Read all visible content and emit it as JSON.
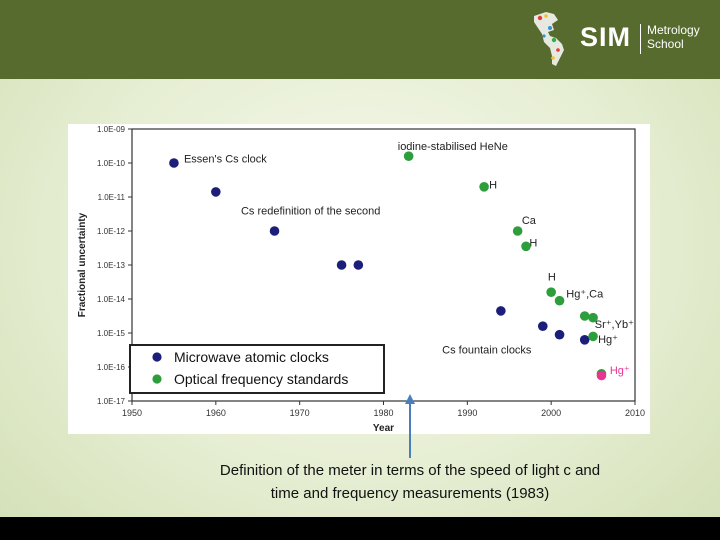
{
  "header": {
    "logo_main": "SIM",
    "logo_sub_line1": "Metrology",
    "logo_sub_line2": "School",
    "colors": {
      "band": "#566b2d",
      "logo_text": "#ffffff"
    }
  },
  "caption": {
    "line1": "Definition of the meter in terms of the speed of light c and",
    "line2": "time and frequency measurements (1983)"
  },
  "chart_data": {
    "type": "scatter",
    "title": "",
    "xlabel": "Year",
    "ylabel": "Fractional uncertainty",
    "xlim": [
      1950,
      2010
    ],
    "ylim_log10": [
      -17,
      -9
    ],
    "x_ticks": [
      1950,
      1960,
      1970,
      1980,
      1990,
      2000,
      2010
    ],
    "y_ticks": [
      {
        "exp": -9,
        "label": "1.0E-09"
      },
      {
        "exp": -10,
        "label": "1.0E-10"
      },
      {
        "exp": -11,
        "label": "1.0E-11"
      },
      {
        "exp": -12,
        "label": "1.0E-12"
      },
      {
        "exp": -13,
        "label": "1.0E-13"
      },
      {
        "exp": -14,
        "label": "1.0E-14"
      },
      {
        "exp": -15,
        "label": "1.0E-15"
      },
      {
        "exp": -16,
        "label": "1.0E-16"
      },
      {
        "exp": -17,
        "label": "1.0E-17"
      }
    ],
    "legend": {
      "placement": "bottom-left",
      "entries": [
        "Microwave atomic clocks",
        "Optical frequency standards"
      ]
    },
    "series": [
      {
        "name": "Microwave atomic clocks",
        "color": "#1c1f7a",
        "points": [
          {
            "year": 1955,
            "log10": -10.0
          },
          {
            "year": 1960,
            "log10": -10.85
          },
          {
            "year": 1967,
            "log10": -12.0
          },
          {
            "year": 1975,
            "log10": -13.0
          },
          {
            "year": 1977,
            "log10": -13.0
          },
          {
            "year": 1994,
            "log10": -14.35
          },
          {
            "year": 1999,
            "log10": -14.8
          },
          {
            "year": 2001,
            "log10": -15.05
          },
          {
            "year": 2004,
            "log10": -15.2
          }
        ]
      },
      {
        "name": "Optical frequency standards",
        "color": "#2e9e3c",
        "points": [
          {
            "year": 1983,
            "log10": -9.8
          },
          {
            "year": 1992,
            "log10": -10.7
          },
          {
            "year": 1996,
            "log10": -12.0
          },
          {
            "year": 1997,
            "log10": -12.45
          },
          {
            "year": 2000,
            "log10": -13.8
          },
          {
            "year": 2001,
            "log10": -14.05
          },
          {
            "year": 2004,
            "log10": -14.5
          },
          {
            "year": 2005,
            "log10": -14.55
          },
          {
            "year": 2005,
            "log10": -15.1
          },
          {
            "year": 2006,
            "log10": -16.2
          }
        ]
      },
      {
        "name": "Hg+ (latest)",
        "color": "#e8358f",
        "points": [
          {
            "year": 2006,
            "log10": -16.25
          }
        ]
      }
    ],
    "annotations": [
      {
        "text": "Essen's Cs clock",
        "year": 1956.2,
        "log10": -9.98,
        "anchor": "start"
      },
      {
        "text": "iodine-stabilised HeNe",
        "year": 1981.7,
        "log10": -9.62,
        "anchor": "start"
      },
      {
        "text": "Cs redefinition of the second",
        "year": 1963.0,
        "log10": -11.52,
        "anchor": "start"
      },
      {
        "text": "H",
        "year": 1992.6,
        "log10": -10.75,
        "anchor": "start"
      },
      {
        "text": "Ca",
        "year": 1996.5,
        "log10": -11.8,
        "anchor": "start"
      },
      {
        "text": "H",
        "year": 1997.4,
        "log10": -12.45,
        "anchor": "start"
      },
      {
        "text": "H",
        "year": 1999.6,
        "log10": -13.45,
        "anchor": "start"
      },
      {
        "text": "Hg⁺,Ca",
        "year": 2001.8,
        "log10": -13.95,
        "anchor": "start"
      },
      {
        "text": "Sr⁺,Yb⁺",
        "year": 2005.2,
        "log10": -14.85,
        "anchor": "start"
      },
      {
        "text": "Hg⁺",
        "year": 2005.6,
        "log10": -15.3,
        "anchor": "start"
      },
      {
        "text": "Cs fountain clocks",
        "year": 1987.0,
        "log10": -15.6,
        "anchor": "start"
      },
      {
        "text": "Hg⁺",
        "year": 2007.0,
        "log10": -16.2,
        "anchor": "start",
        "color": "#e8358f"
      }
    ]
  }
}
